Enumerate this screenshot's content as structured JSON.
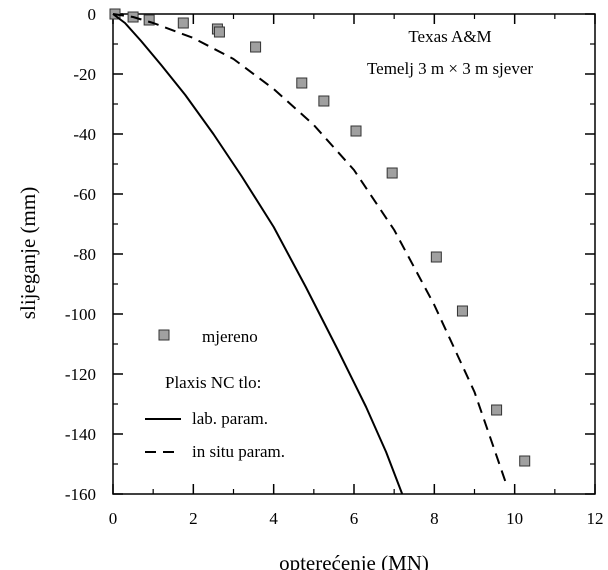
{
  "chart_data": {
    "type": "scatter",
    "xlabel": "opterećenje (MN)",
    "ylabel": "slijeganje (mm)",
    "xlim": [
      0,
      12
    ],
    "ylim": [
      -160,
      0
    ],
    "xticks": [
      0,
      2,
      4,
      6,
      8,
      10,
      12
    ],
    "yticks": [
      0,
      -20,
      -40,
      -60,
      -80,
      -100,
      -120,
      -140,
      -160
    ],
    "xtick_labels": [
      "0",
      "2",
      "4",
      "6",
      "8",
      "10",
      "12"
    ],
    "ytick_labels": [
      "0",
      "-20",
      "-40",
      "-60",
      "-80",
      "-100",
      "-120",
      "-140",
      "-160"
    ],
    "grid": false,
    "annotations": {
      "line1": "Texas A&M",
      "line2": "Temelj 3 m × 3 m sjever"
    },
    "legend": {
      "placement": "lower-left",
      "group_title": "Plaxis NC tlo:"
    },
    "series": [
      {
        "name": "mjereno",
        "style": "square-markers",
        "color": "#a0a0a0",
        "x": [
          0.05,
          0.5,
          0.9,
          1.75,
          2.6,
          2.65,
          3.55,
          4.7,
          5.25,
          6.05,
          6.95,
          8.05,
          8.7,
          9.55,
          10.25
        ],
        "y": [
          0,
          -1,
          -2,
          -3,
          -5,
          -6,
          -11,
          -23,
          -29,
          -39,
          -53,
          -81,
          -99,
          -132,
          -149
        ]
      },
      {
        "name": "lab. param.",
        "style": "solid",
        "color": "#000000",
        "x": [
          0,
          0.3,
          0.7,
          1.2,
          1.8,
          2.5,
          3.2,
          4.0,
          4.8,
          5.6,
          6.3,
          6.8,
          7.2
        ],
        "y": [
          0,
          -3,
          -9,
          -17,
          -27,
          -40,
          -54,
          -71,
          -91,
          -112,
          -131,
          -146,
          -160
        ]
      },
      {
        "name": "in situ param.",
        "style": "dashed",
        "color": "#000000",
        "x": [
          0,
          0.5,
          1.0,
          2.0,
          3.0,
          4.0,
          5.0,
          6.0,
          7.0,
          8.0,
          9.0,
          9.8
        ],
        "y": [
          0,
          -1,
          -3,
          -8,
          -15,
          -25,
          -37,
          -52,
          -72,
          -97,
          -126,
          -157
        ]
      }
    ]
  }
}
